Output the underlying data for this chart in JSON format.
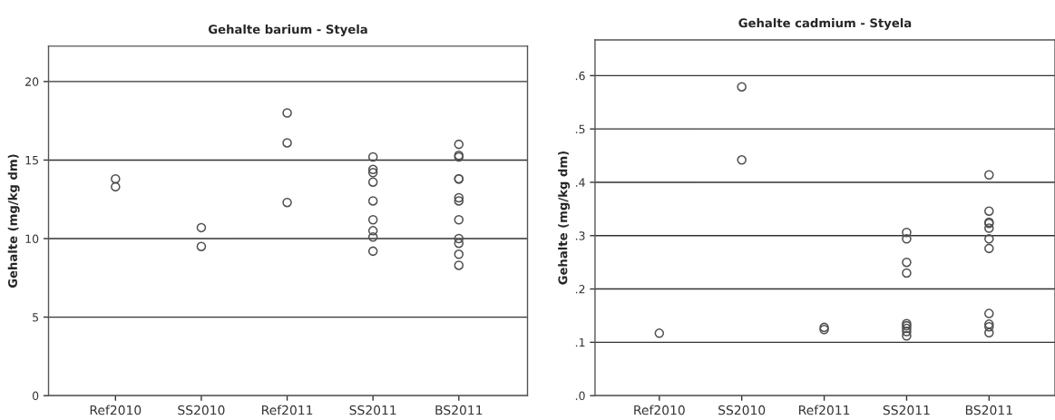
{
  "chart_data": [
    {
      "type": "scatter",
      "title": "Gehalte barium - Styela",
      "ylabel": "Gehalte (mg/kg dm)",
      "categories": [
        "Ref2010",
        "SS2010",
        "Ref2011",
        "SS2011",
        "BS2011"
      ],
      "ylim": [
        0,
        22.25
      ],
      "yticks": [
        0,
        5,
        10,
        15,
        20
      ],
      "grid": "y",
      "marker": "circle",
      "series": [
        {
          "color": "#505050",
          "x": [
            "Ref2010",
            "Ref2010",
            "SS2010",
            "SS2010",
            "Ref2011",
            "Ref2011",
            "Ref2011",
            "SS2011",
            "SS2011",
            "SS2011",
            "SS2011",
            "SS2011",
            "SS2011",
            "SS2011",
            "SS2011",
            "SS2011",
            "BS2011",
            "BS2011",
            "BS2011",
            "BS2011",
            "BS2011",
            "BS2011",
            "BS2011",
            "BS2011",
            "BS2011",
            "BS2011",
            "BS2011",
            "BS2011"
          ],
          "values": [
            13.8,
            13.3,
            10.7,
            9.5,
            18.0,
            16.1,
            12.3,
            15.2,
            14.4,
            14.2,
            13.6,
            12.4,
            11.2,
            10.5,
            10.1,
            9.2,
            16.0,
            15.3,
            15.2,
            13.8,
            13.8,
            12.6,
            12.4,
            11.2,
            10.0,
            9.7,
            9.0,
            8.3
          ]
        }
      ]
    },
    {
      "type": "scatter",
      "title": "Gehalte cadmium - Styela",
      "ylabel": "Gehalte (mg/kg dm)",
      "categories": [
        "Ref2010",
        "SS2010",
        "Ref2011",
        "SS2011",
        "BS2011"
      ],
      "ylim": [
        0,
        0.667
      ],
      "yticks": [
        {
          "value": 0,
          "label": ".0"
        },
        {
          "value": 0.1,
          "label": ".1"
        },
        {
          "value": 0.2,
          "label": ".2"
        },
        {
          "value": 0.3,
          "label": ".3"
        },
        {
          "value": 0.4,
          "label": ".4"
        },
        {
          "value": 0.5,
          "label": ".5"
        },
        {
          "value": 0.6,
          "label": ".6"
        }
      ],
      "grid": "y",
      "marker": "circle",
      "series": [
        {
          "color": "#505050",
          "x": [
            "Ref2010",
            "SS2010",
            "SS2010",
            "Ref2011",
            "Ref2011",
            "SS2011",
            "SS2011",
            "SS2011",
            "SS2011",
            "SS2011",
            "SS2011",
            "SS2011",
            "SS2011",
            "SS2011",
            "BS2011",
            "BS2011",
            "BS2011",
            "BS2011",
            "BS2011",
            "BS2011",
            "BS2011",
            "BS2011",
            "BS2011",
            "BS2011",
            "BS2011"
          ],
          "values": [
            0.117,
            0.579,
            0.442,
            0.128,
            0.124,
            0.306,
            0.294,
            0.25,
            0.23,
            0.135,
            0.131,
            0.126,
            0.12,
            0.112,
            0.414,
            0.346,
            0.325,
            0.323,
            0.314,
            0.294,
            0.276,
            0.154,
            0.134,
            0.129,
            0.118
          ]
        }
      ]
    }
  ]
}
